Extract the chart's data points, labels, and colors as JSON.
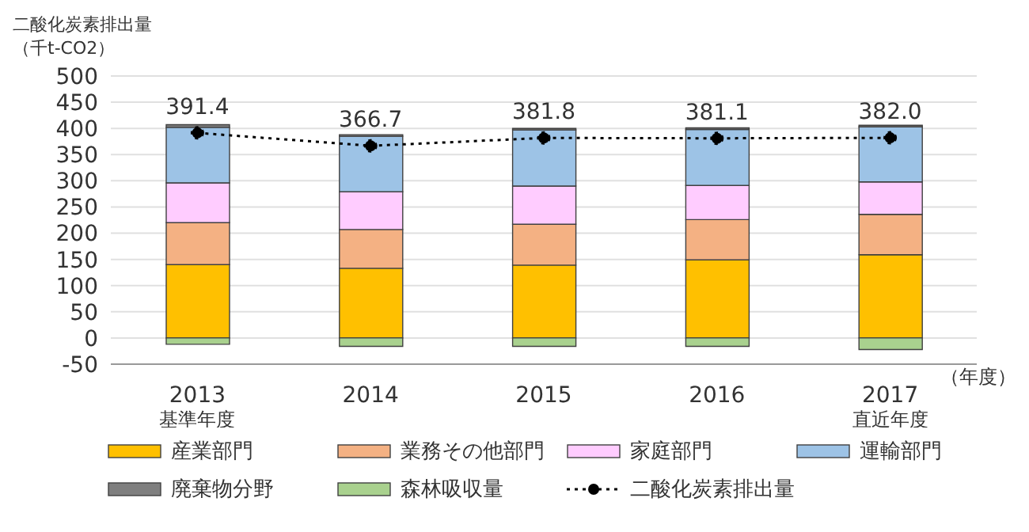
{
  "chart_data": {
    "type": "bar",
    "stacked": true,
    "ylabel": "二酸化炭素排出量（千t-CO2）",
    "xlabel": "（年度）",
    "categories": [
      "2013\n基準年度",
      "2014",
      "2015",
      "2016",
      "2017\n直近年度"
    ],
    "series": [
      {
        "name": "産業部門",
        "color": "#ffc000",
        "values": [
          140,
          133,
          139,
          149,
          159
        ]
      },
      {
        "name": "業務その他部門",
        "color": "#f4b183",
        "values": [
          80,
          74,
          78,
          77,
          77
        ]
      },
      {
        "name": "家庭部門",
        "color": "#ffccff",
        "values": [
          76,
          72,
          73,
          65,
          62
        ]
      },
      {
        "name": "運輸部門",
        "color": "#9dc3e6",
        "values": [
          106,
          106,
          107,
          107,
          105
        ]
      },
      {
        "name": "廃棄物分野",
        "color": "#7f7f7f",
        "values": [
          5,
          3,
          3,
          3,
          3
        ]
      },
      {
        "name": "森林吸収量",
        "color": "#a9d18e",
        "values": [
          -12,
          -16,
          -16,
          -16,
          -22
        ]
      },
      {
        "name": "二酸化炭素排出量",
        "type": "line",
        "color": "#000000",
        "line_style": "dotted",
        "marker": "circle",
        "values": [
          391.4,
          366.7,
          381.8,
          381.1,
          382.0
        ],
        "value_labels": [
          "391.4",
          "366.7",
          "381.8",
          "381.1",
          "382.0"
        ]
      }
    ],
    "ylim": [
      -50,
      500
    ],
    "yticks": [
      -50,
      0,
      50,
      100,
      150,
      200,
      250,
      300,
      350,
      400,
      450,
      500
    ],
    "grid": "y",
    "legend": "bottom"
  }
}
